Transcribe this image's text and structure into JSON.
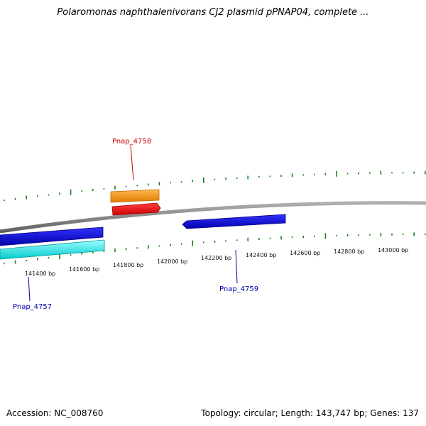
{
  "title": "Polaromonas naphthalenivorans CJ2 plasmid pPNAP04, complete ...",
  "footer": {
    "accession": "Accession: NC_008760",
    "summary": "Topology: circular; Length: 143,747 bp; Genes: 137"
  },
  "axis_ticks": [
    "141400 bp",
    "141600 bp",
    "141800 bp",
    "142000 bp",
    "142200 bp",
    "142400 bp",
    "142600 bp",
    "142800 bp",
    "143000 bp"
  ],
  "genes": [
    {
      "name": "Pnap_4757",
      "label_color": "#0000aa",
      "fill_colors": [
        "#0000ff",
        "#00ffff"
      ]
    },
    {
      "name": "Pnap_4758",
      "label_color": "#cc0000",
      "fill_colors": [
        "#ff9900",
        "#ff0000"
      ]
    },
    {
      "name": "Pnap_4759",
      "label_color": "#0000aa",
      "fill_colors": [
        "#0000ff"
      ]
    }
  ],
  "colors": {
    "backbone": "#808080",
    "gc_marks": "#1a7f1a"
  }
}
